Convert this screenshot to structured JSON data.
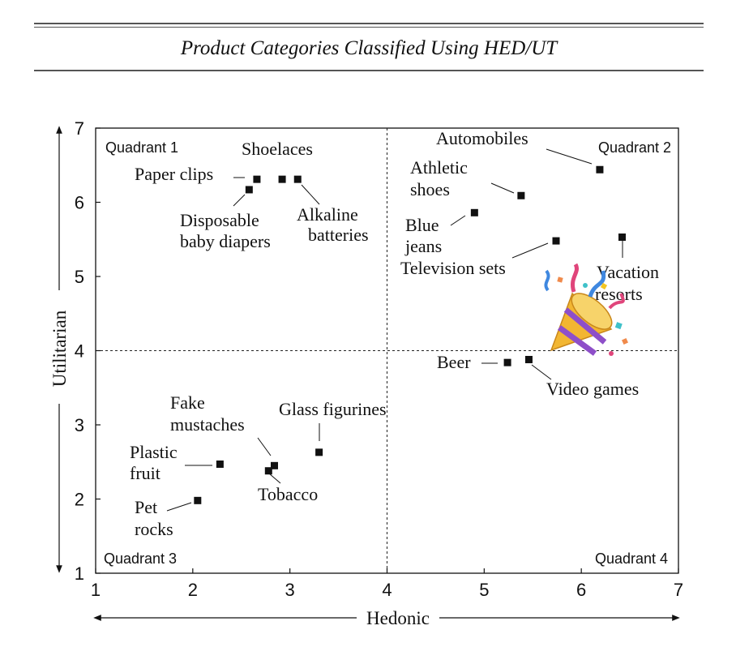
{
  "title": "Product Categories Classified Using HED/UT",
  "chart_data": {
    "type": "scatter",
    "title": "Product Categories Classified Using HED/UT",
    "xlabel": "Hedonic",
    "ylabel": "Utilitarian",
    "xlim": [
      1,
      7
    ],
    "ylim": [
      1,
      7
    ],
    "x_ticks": [
      "1",
      "2",
      "3",
      "4",
      "5",
      "6",
      "7"
    ],
    "y_ticks": [
      "1",
      "2",
      "3",
      "4",
      "5",
      "6",
      "7"
    ],
    "dividers": {
      "x": 4,
      "y": 4
    },
    "grid": false,
    "quadrants": [
      {
        "label": "Quadrant 1",
        "position": "top-left"
      },
      {
        "label": "Quadrant 2",
        "position": "top-right"
      },
      {
        "label": "Quadrant 3",
        "position": "bottom-left"
      },
      {
        "label": "Quadrant 4",
        "position": "bottom-right"
      }
    ],
    "points": [
      {
        "label": "Paper clips",
        "x": 2.66,
        "y": 6.31
      },
      {
        "label": "Shoelaces",
        "x": 2.92,
        "y": 6.31
      },
      {
        "label": "Alkaline batteries",
        "x": 3.08,
        "y": 6.31
      },
      {
        "label": "Disposable baby diapers",
        "x": 2.58,
        "y": 6.17
      },
      {
        "label": "Automobiles",
        "x": 6.19,
        "y": 6.44
      },
      {
        "label": "Athletic shoes",
        "x": 5.38,
        "y": 6.09
      },
      {
        "label": "Blue jeans",
        "x": 4.9,
        "y": 5.86
      },
      {
        "label": "Television sets",
        "x": 5.74,
        "y": 5.48
      },
      {
        "label": "Vacation resorts",
        "x": 6.42,
        "y": 5.53
      },
      {
        "label": "Beer",
        "x": 5.24,
        "y": 3.84
      },
      {
        "label": "Video games",
        "x": 5.46,
        "y": 3.88
      },
      {
        "label": "Glass figurines",
        "x": 3.3,
        "y": 2.63
      },
      {
        "label": "Fake mustaches",
        "x": 2.84,
        "y": 2.45
      },
      {
        "label": "Tobacco",
        "x": 2.78,
        "y": 2.38
      },
      {
        "label": "Plastic fruit",
        "x": 2.28,
        "y": 2.47
      },
      {
        "label": "Pet rocks",
        "x": 2.05,
        "y": 1.98
      }
    ]
  },
  "icons": [
    "party-popper-icon"
  ]
}
